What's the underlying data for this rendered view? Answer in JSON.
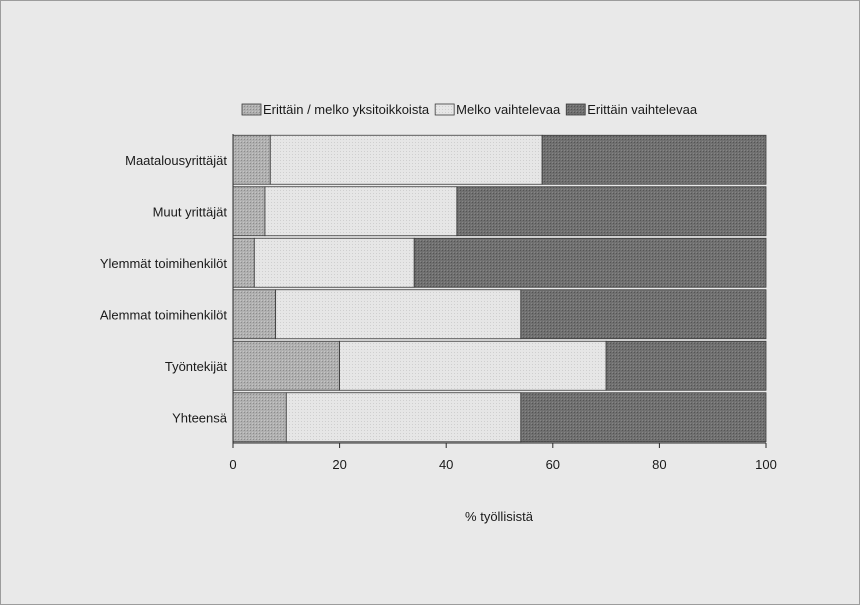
{
  "chart_data": {
    "type": "bar",
    "orientation": "horizontal",
    "stacked": true,
    "xlabel": "% työllisistä",
    "xlim": [
      0,
      100
    ],
    "xticks": [
      0,
      20,
      40,
      60,
      80,
      100
    ],
    "categories": [
      "Maatalousyrittäjät",
      "Muut yrittäjät",
      "Ylemmät toimihenkilöt",
      "Alemmat toimihenkilöt",
      "Työntekijät",
      "Yhteensä"
    ],
    "series": [
      {
        "name": "Erittäin / melko yksitoikkoista",
        "values": [
          7,
          6,
          4,
          8,
          20,
          10
        ],
        "color": "#a8a8a8"
      },
      {
        "name": "Melko vaihtelevaa",
        "values": [
          51,
          36,
          30,
          46,
          50,
          44
        ],
        "color": "#e4e4e4"
      },
      {
        "name": "Erittäin vaihtelevaa",
        "values": [
          42,
          58,
          66,
          46,
          30,
          46
        ],
        "color": "#6e6e6e"
      }
    ],
    "grid": false,
    "legend_position": "top"
  }
}
